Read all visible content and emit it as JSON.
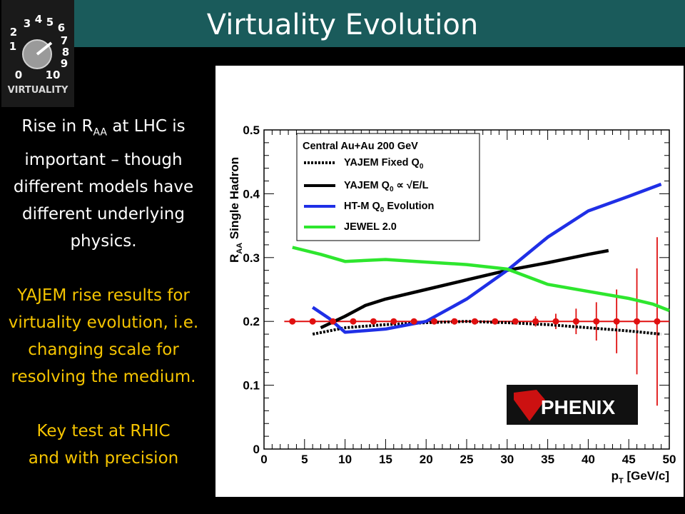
{
  "title": "Virtuality Evolution",
  "logo": {
    "dial_numbers": [
      "3",
      "4",
      "5",
      "6",
      "7",
      "2",
      "8",
      "1",
      "9",
      "0",
      "10"
    ],
    "label": "VIRTUALITY"
  },
  "left_text": {
    "p1_a": "Rise in R",
    "p1_sub": "AA",
    "p1_b": " at LHC is important – though different models have different underlying physics.",
    "p2": "YAJEM rise results for virtuality evolution, i.e. changing scale for resolving the medium.",
    "p3_l1": "Key test at RHIC",
    "p3_l2": "and with precision"
  },
  "colors": {
    "title_bar": "#1a5b5b",
    "yellow_text": "#f5c400",
    "htm": "#1f2fe6",
    "jewel": "#2ee62e",
    "data": "#e01010"
  },
  "chart_data": {
    "type": "line",
    "ylabel_main": "R",
    "ylabel_sub": "AA",
    "ylabel_rest": " Single Hadron",
    "xlabel_main": "p",
    "xlabel_sub": "T",
    "xlabel_rest": " [GeV/c]",
    "xlim": [
      0,
      50
    ],
    "ylim": [
      0,
      0.5
    ],
    "x_ticks": [
      0,
      5,
      10,
      15,
      20,
      25,
      30,
      35,
      40,
      45,
      50
    ],
    "y_ticks": [
      0,
      0.1,
      0.2,
      0.3,
      0.4,
      0.5
    ],
    "y_tick_labels": [
      "0",
      "0.1",
      "0.2",
      "0.3",
      "0.4",
      "0.5"
    ],
    "legend_header": "Central Au+Au 200 GeV",
    "legend_placement": "top-left",
    "series": [
      {
        "name_a": "YAJEM Fixed Q",
        "name_sub": "0",
        "name_b": "",
        "style": "dotted",
        "color": "#000000",
        "points": [
          [
            6,
            0.18
          ],
          [
            10,
            0.19
          ],
          [
            15,
            0.195
          ],
          [
            20,
            0.198
          ],
          [
            25,
            0.2
          ],
          [
            30,
            0.198
          ],
          [
            35,
            0.195
          ],
          [
            40,
            0.19
          ],
          [
            45,
            0.185
          ],
          [
            49,
            0.18
          ]
        ]
      },
      {
        "name_a": "YAJEM Q",
        "name_sub": "0",
        "name_b": " ∝ √E/L",
        "style": "solid",
        "color": "#000000",
        "points": [
          [
            7,
            0.19
          ],
          [
            10,
            0.208
          ],
          [
            12.5,
            0.225
          ],
          [
            15,
            0.235
          ],
          [
            20,
            0.25
          ],
          [
            25,
            0.265
          ],
          [
            30,
            0.28
          ],
          [
            35,
            0.292
          ],
          [
            40,
            0.305
          ],
          [
            42.5,
            0.311
          ]
        ]
      },
      {
        "name_a": "HT-M Q",
        "name_sub": "0",
        "name_b": " Evolution",
        "style": "solid",
        "color": "#1f2fe6",
        "points": [
          [
            6,
            0.222
          ],
          [
            8,
            0.205
          ],
          [
            10,
            0.183
          ],
          [
            15,
            0.188
          ],
          [
            20,
            0.2
          ],
          [
            25,
            0.235
          ],
          [
            30,
            0.28
          ],
          [
            35,
            0.332
          ],
          [
            40,
            0.373
          ],
          [
            45,
            0.396
          ],
          [
            49,
            0.415
          ]
        ]
      },
      {
        "name_a": "JEWEL 2.0",
        "name_sub": "",
        "name_b": "",
        "style": "solid",
        "color": "#2ee62e",
        "points": [
          [
            3.5,
            0.316
          ],
          [
            7,
            0.305
          ],
          [
            10,
            0.294
          ],
          [
            15,
            0.297
          ],
          [
            20,
            0.293
          ],
          [
            25,
            0.289
          ],
          [
            30,
            0.282
          ],
          [
            35,
            0.258
          ],
          [
            40,
            0.247
          ],
          [
            45,
            0.236
          ],
          [
            48,
            0.227
          ],
          [
            50,
            0.217
          ]
        ]
      }
    ],
    "data_points": {
      "name": "PHENIX",
      "y_value": 0.2,
      "line_x": [
        2.5,
        50
      ],
      "x": [
        3.5,
        6,
        8.5,
        11,
        13.5,
        16,
        18.5,
        21,
        23.5,
        26,
        28.5,
        31,
        33.5,
        36,
        38.5,
        41,
        43.5,
        46,
        48.5
      ],
      "err": [
        0,
        0,
        0,
        0,
        0,
        0,
        0,
        0,
        0,
        0,
        0,
        0.004,
        0.008,
        0.012,
        0.02,
        0.03,
        0.05,
        0.083,
        0.132
      ]
    },
    "phenix_logo_text": "PHENIX"
  }
}
